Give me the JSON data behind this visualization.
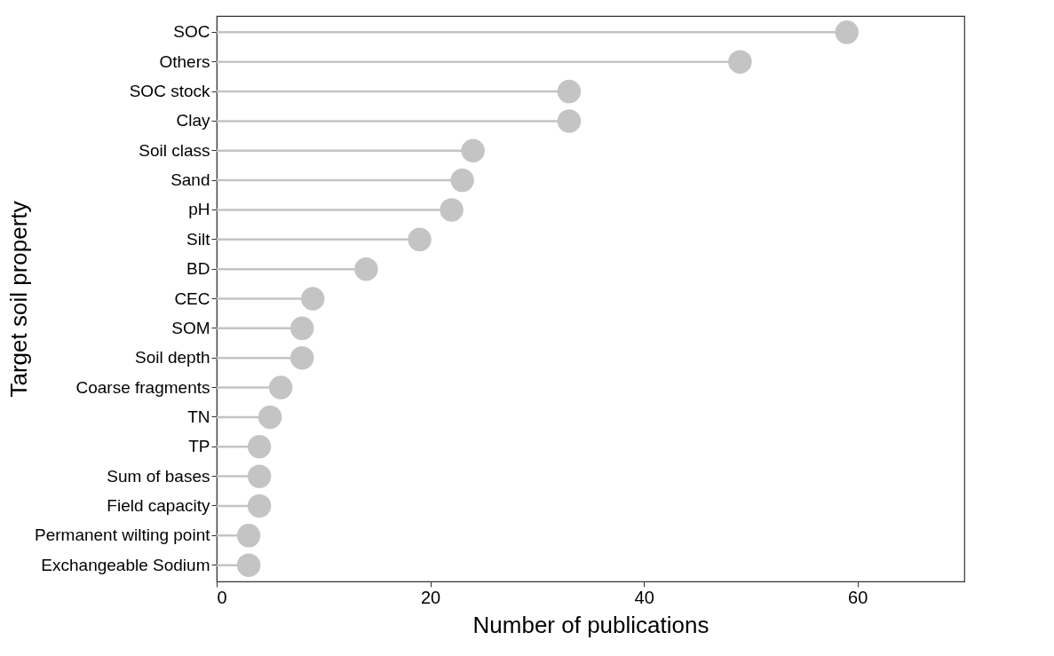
{
  "chart_data": {
    "type": "lollipop",
    "orientation": "horizontal",
    "xlabel": "Number of publications",
    "ylabel": "Target soil property",
    "categories": [
      "SOC",
      "Others",
      "SOC stock",
      "Clay",
      "Soil class",
      "Sand",
      "pH",
      "Silt",
      "BD",
      "CEC",
      "SOM",
      "Soil depth",
      "Coarse fragments",
      "TN",
      "TP",
      "Sum of bases",
      "Field capacity",
      "Permanent wilting point",
      "Exchangeable Sodium"
    ],
    "values": [
      59,
      49,
      33,
      33,
      24,
      23,
      22,
      19,
      14,
      9,
      8,
      8,
      6,
      5,
      4,
      4,
      4,
      3,
      3
    ],
    "color": "#c4c4c4",
    "xlim": [
      0,
      70
    ],
    "xticks": [
      0,
      20,
      40,
      60
    ],
    "grid": false,
    "marker": "circle"
  }
}
